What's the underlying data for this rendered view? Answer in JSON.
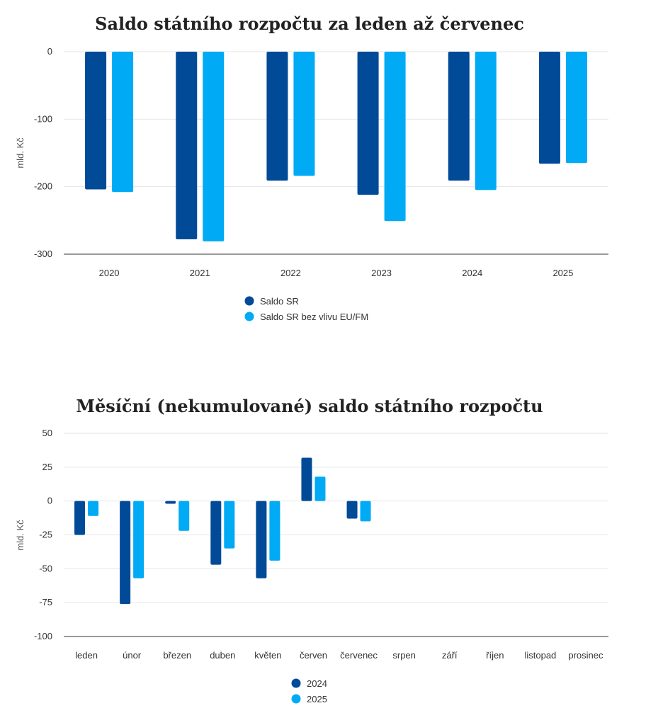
{
  "colors": {
    "dark": "#004a98",
    "light": "#00aaf5"
  },
  "chart_data": [
    {
      "type": "bar",
      "title": "Saldo státního rozpočtu za leden až červenec",
      "ylabel": "mld. Kč",
      "xlabel": "",
      "ylim": [
        -300,
        0
      ],
      "yticks": [
        0,
        -100,
        -200,
        -300
      ],
      "ytick_labels": [
        "0",
        "-100",
        "-200",
        "-300"
      ],
      "categories": [
        "2020",
        "2021",
        "2022",
        "2023",
        "2024",
        "2025"
      ],
      "legend": "bottom-center",
      "grid": true,
      "series": [
        {
          "name": "Saldo SR",
          "color": "#004a98",
          "values": [
            -204,
            -278,
            -191,
            -212,
            -191,
            -166
          ]
        },
        {
          "name": "Saldo SR bez vlivu EU/FM",
          "color": "#00aaf5",
          "values": [
            -208,
            -281,
            -184,
            -251,
            -205,
            -165
          ]
        }
      ]
    },
    {
      "type": "bar",
      "title": "Měsíční (nekumulované) saldo státního rozpočtu",
      "ylabel": "mld. Kč",
      "xlabel": "",
      "ylim": [
        -100,
        50
      ],
      "yticks": [
        50,
        25,
        0,
        -25,
        -50,
        -75,
        -100
      ],
      "ytick_labels": [
        "50",
        "25",
        "0",
        "-25",
        "-50",
        "-75",
        "-100"
      ],
      "categories": [
        "leden",
        "únor",
        "březen",
        "duben",
        "květen",
        "červen",
        "červenec",
        "srpen",
        "září",
        "říjen",
        "listopad",
        "prosinec"
      ],
      "legend": "bottom-center",
      "grid": true,
      "series": [
        {
          "name": "2024",
          "color": "#004a98",
          "values": [
            -25,
            -76,
            -2,
            -47,
            -57,
            32,
            -13,
            null,
            null,
            null,
            null,
            null
          ]
        },
        {
          "name": "2025",
          "color": "#00aaf5",
          "values": [
            -11,
            -57,
            -22,
            -35,
            -44,
            18,
            -15,
            null,
            null,
            null,
            null,
            null
          ]
        }
      ]
    }
  ]
}
